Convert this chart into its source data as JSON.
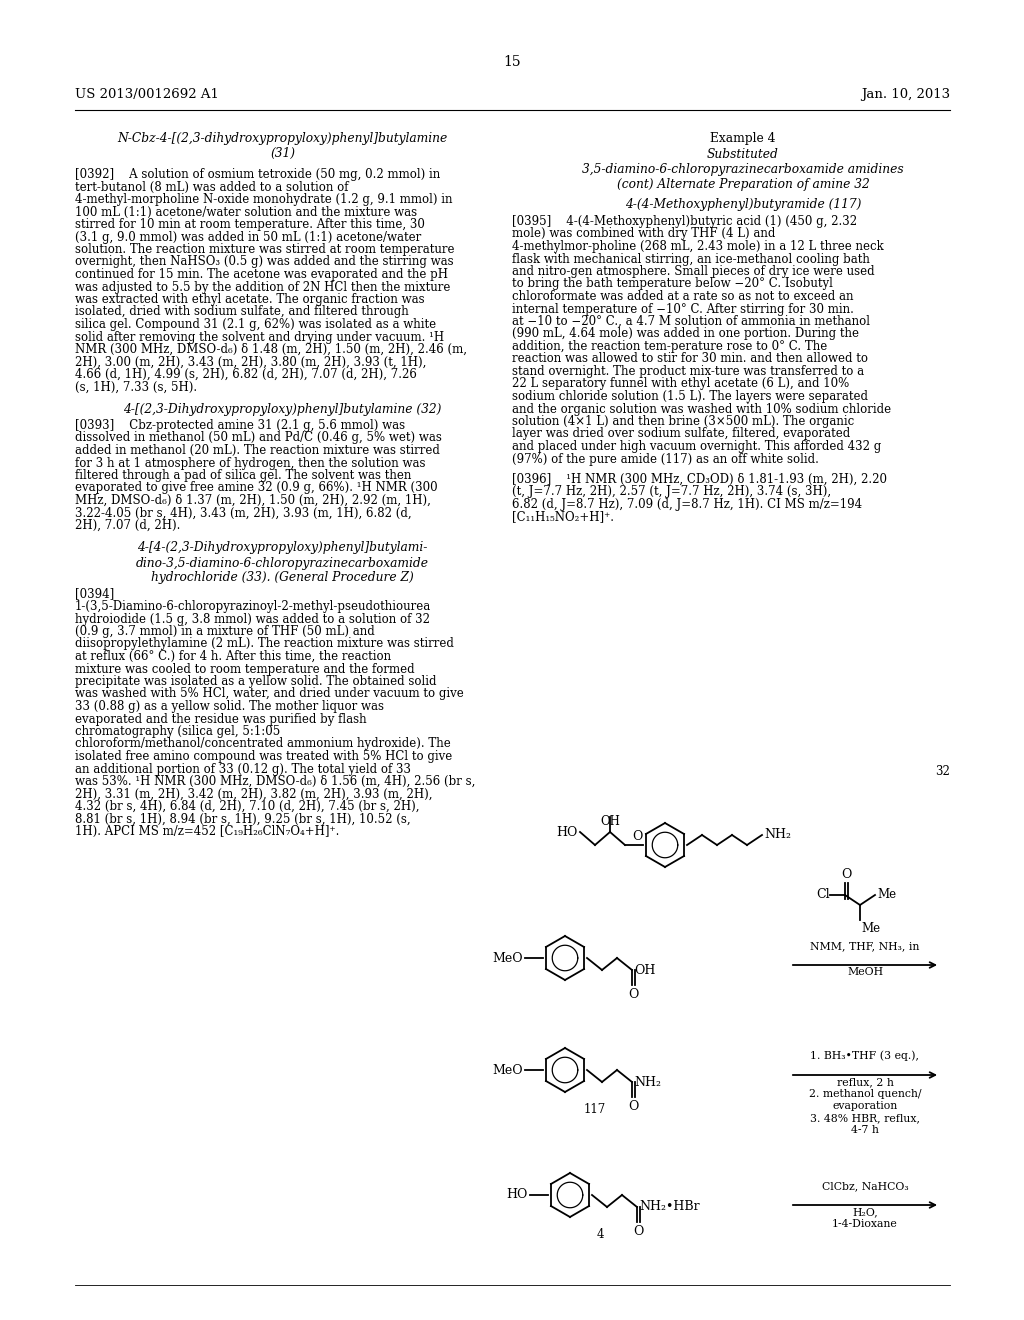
{
  "page_number": "15",
  "patent_number": "US 2013/0012692 A1",
  "date": "Jan. 10, 2013",
  "background_color": "#ffffff",
  "text_color": "#000000",
  "left_column": {
    "title1": "N-Cbz-4-[(2,3-dihydroxypropyloxy)phenyl]butylamine\n(31)",
    "para0392": "[0392]    A solution of osmium tetroxide (50 mg, 0.2 mmol) in tert-butanol (8 mL) was added to a solution of 4-methyl-morpholine N-oxide monohydrate (1.2 g, 9.1 mmol) in 100 mL (1:1) acetone/water solution and the mixture was stirred for 10 min at room temperature. After this time, 30 (3.1 g, 9.0 mmol) was added in 50 mL (1:1) acetone/water solution. The reaction mixture was stirred at room temperature overnight, then NaHSO₃ (0.5 g) was added and the stirring was continued for 15 min. The acetone was evaporated and the pH was adjusted to 5.5 by the addition of 2N HCl then the mixture was extracted with ethyl acetate. The organic fraction was isolated, dried with sodium sulfate, and filtered through silica gel. Compound 31 (2.1 g, 62%) was isolated as a white solid after removing the solvent and drying under vacuum. ¹H NMR (300 MHz, DMSO-d₆) δ 1.48 (m, 2H), 1.50 (m, 2H), 2.46 (m, 2H), 3.00 (m, 2H), 3.43 (m, 2H), 3.80 (m, 2H), 3.93 (t, 1H), 4.66 (d, 1H), 4.99 (s, 2H), 6.82 (d, 2H), 7.07 (d, 2H), 7.26 (s, 1H), 7.33 (s, 5H).",
    "title2": "4-[(2,3-Dihydroxypropyloxy)phenyl]butylamine (32)",
    "para0393": "[0393]    Cbz-protected amine 31 (2.1 g, 5.6 mmol) was dissolved in methanol (50 mL) and Pd/C (0.46 g, 5% wet) was added in methanol (20 mL). The reaction mixture was stirred for 3 h at 1 atmosphere of hydrogen, then the solution was filtered through a pad of silica gel. The solvent was then evaporated to give free amine 32 (0.9 g, 66%). ¹H NMR (300 MHz, DMSO-d₆) δ 1.37 (m, 2H), 1.50 (m, 2H), 2.92 (m, 1H), 3.22-4.05 (br s, 4H), 3.43 (m, 2H), 3.93 (m, 1H), 6.82 (d, 2H), 7.07 (d, 2H).",
    "title3": "4-[4-(2,3-Dihydroxypropyloxy)phenyl]butylami-\ndino-3,5-diamino-6-chloropyrazinecarboxamide\nhydrochloride (33). (General Procedure Z)",
    "para0394": "[0394]    1-(3,5-Diamino-6-chloropyrazinoyl-2-methyl-pseudothiourea hydroiodide (1.5 g, 3.8 mmol) was added to a solution of 32 (0.9 g, 3.7 mmol) in a mixture of THF (50 mL) and diisopropylethylamine (2 mL). The reaction mixture was stirred at reflux (66° C.) for 4 h. After this time, the reaction mixture was cooled to room temperature and the formed precipitate was isolated as a yellow solid. The obtained solid was washed with 5% HCl, water, and dried under vacuum to give 33 (0.88 g) as a yellow solid. The mother liquor was evaporated and the residue was purified by flash chromatography (silica gel, 5:1:05 chloroform/methanol/concentrated ammonium hydroxide). The isolated free amino compound was treated with 5% HCl to give an additional portion of 33 (0.12 g). The total yield of 33 was 53%. ¹H NMR (300 MHz, DMSO-d₆) δ 1.56 (m, 4H), 2.56 (br s, 2H), 3.31 (m, 2H), 3.42 (m, 2H), 3.82 (m, 2H), 3.93 (m, 2H), 4.32 (br s, 4H), 6.84 (d, 2H), 7.10 (d, 2H), 7.45 (br s, 2H), 8.81 (br s, 1H), 8.94 (br s, 1H), 9.25 (br s, 1H), 10.52 (s, 1H). APCI MS m/z=452 [C₁₉H₂₆ClN₇O₄+H]⁺."
  },
  "right_column": {
    "title_example4": "Example 4",
    "title_subst": "Substituted\n3,5-diamino-6-chloropyrazinecarboxamide amidines\n(cont) Alternate Preparation of amine 32",
    "title_compound117": "4-(4-Methoxyphenyl)butyramide (117)",
    "para0395": "[0395]    4-(4-Methoxyphenyl)butyric acid (1) (450 g, 2.32 mole) was combined with dry THF (4 L) and 4-methylmor-pholine (268 mL, 2.43 mole) in a 12 L three neck flask with mechanical stirring, an ice-methanol cooling bath and nitro-gen atmosphere. Small pieces of dry ice were used to bring the bath temperature below −20° C. Isobutyl chloroformate was added at a rate so as not to exceed an internal temperature of −10° C. After stirring for 30 min. at −10 to −20° C., a 4.7 M solution of ammonia in methanol (990 mL, 4.64 mole) was added in one portion. During the addition, the reaction tem-perature rose to 0° C. The reaction was allowed to stir for 30 min. and then allowed to stand overnight. The product mix-ture was transferred to a 22 L separatory funnel with ethyl acetate (6 L), and 10% sodium chloride solution (1.5 L). The layers were separated and the organic solution was washed with 10% sodium chloride solution (4×1 L) and then brine (3×500 mL). The organic layer was dried over sodium sulfate, filtered, evaporated and placed under high vacuum overnight. This afforded 432 g (97%) of the pure amide (117) as an off white solid.",
    "para0396": "[0396]    ¹H NMR (300 MHz, CD₃OD) δ 1.81-1.93 (m, 2H), 2.20 (t, J=7.7 Hz, 2H), 2.57 (t, J=7.7 Hz, 2H), 3.74 (s, 3H), 6.82 (d, J=8.7 Hz), 7.09 (d, J=8.7 Hz, 1H). CI MS m/z=194 [C₁₁H₁₅NO₂+H]⁺."
  }
}
